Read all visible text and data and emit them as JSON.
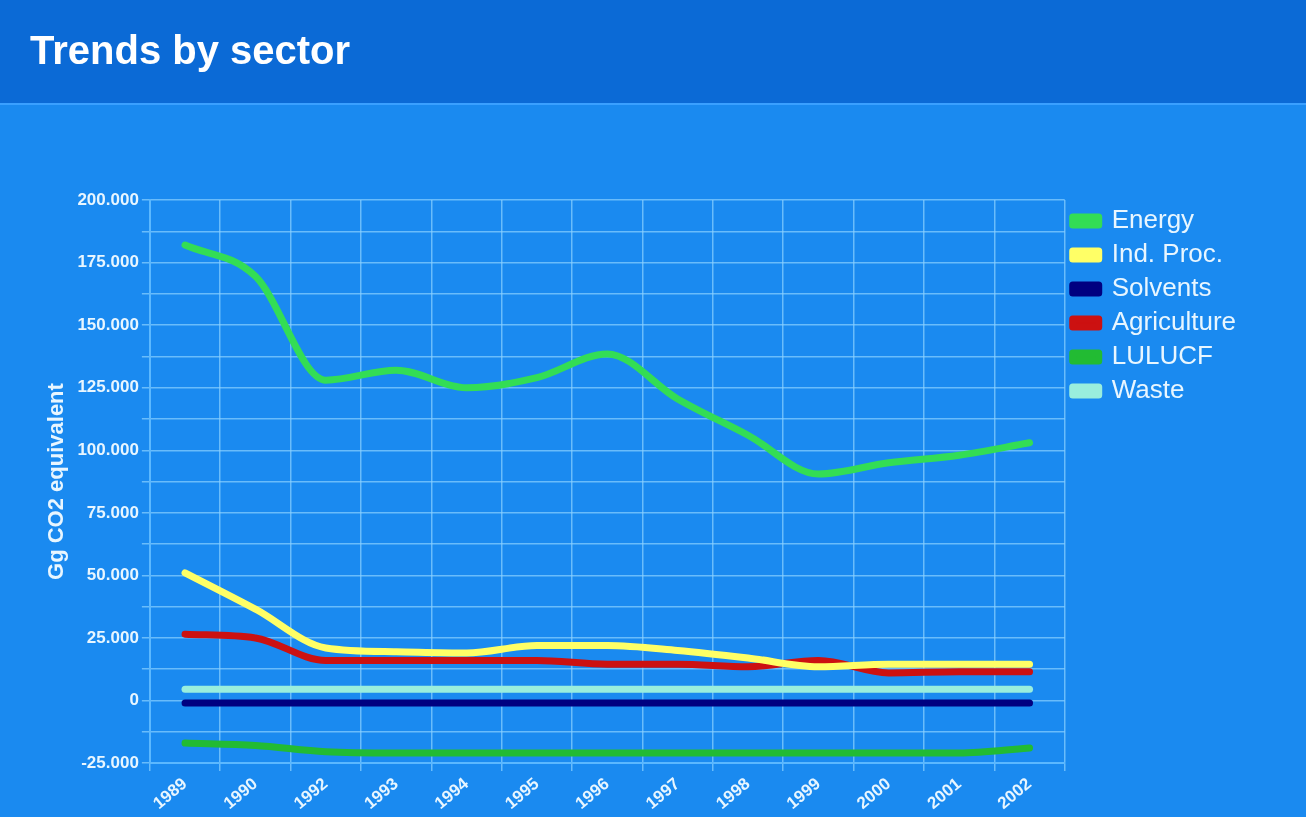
{
  "chart_data": {
    "type": "line",
    "title": "Trends by sector",
    "ylabel": "Gg CO2 equivalent",
    "categories": [
      "1989",
      "1990",
      "1992",
      "1993",
      "1994",
      "1995",
      "1996",
      "1997",
      "1998",
      "1999",
      "2000",
      "2001",
      "2002"
    ],
    "series": [
      {
        "name": "Energy",
        "color": "#33dd55",
        "values": [
          182000,
          169500,
          128000,
          132000,
          125000,
          129000,
          138500,
          120500,
          106000,
          90500,
          95000,
          98000,
          103000
        ]
      },
      {
        "name": "Ind. Proc.",
        "color": "#ffff66",
        "values": [
          51000,
          36500,
          21000,
          19500,
          19000,
          22000,
          22000,
          20000,
          17000,
          13500,
          14500,
          14500,
          14500
        ]
      },
      {
        "name": "Solvents",
        "color": "#000080",
        "values": [
          -1000,
          -1000,
          -1000,
          -1000,
          -1000,
          -1000,
          -1000,
          -1000,
          -1000,
          -1000,
          -1000,
          -1000,
          -1000
        ]
      },
      {
        "name": "Agriculture",
        "color": "#cc1111",
        "values": [
          26500,
          25000,
          16000,
          16000,
          16000,
          16000,
          14500,
          14500,
          13500,
          16000,
          11000,
          11500,
          11500
        ]
      },
      {
        "name": "LULUCF",
        "color": "#22bb33",
        "values": [
          -17000,
          -18000,
          -20500,
          -21000,
          -21000,
          -21000,
          -21000,
          -21000,
          -21000,
          -21000,
          -21000,
          -21000,
          -19000
        ]
      },
      {
        "name": "Waste",
        "color": "#99eedd",
        "values": [
          4500,
          4500,
          4500,
          4500,
          4500,
          4500,
          4500,
          4500,
          4500,
          4500,
          4500,
          4500,
          4500
        ]
      }
    ],
    "ylim": [
      -25000,
      200000
    ],
    "yticks": [
      {
        "value": -25000,
        "label": "-25.000"
      },
      {
        "value": -12500,
        "label": null
      },
      {
        "value": 0,
        "label": "0"
      },
      {
        "value": 12500,
        "label": null
      },
      {
        "value": 25000,
        "label": "25.000"
      },
      {
        "value": 37500,
        "label": null
      },
      {
        "value": 50000,
        "label": "50.000"
      },
      {
        "value": 62500,
        "label": null
      },
      {
        "value": 75000,
        "label": "75.000"
      },
      {
        "value": 87500,
        "label": null
      },
      {
        "value": 100000,
        "label": "100.000"
      },
      {
        "value": 112500,
        "label": null
      },
      {
        "value": 125000,
        "label": "125.000"
      },
      {
        "value": 137500,
        "label": null
      },
      {
        "value": 150000,
        "label": "150.000"
      },
      {
        "value": 162500,
        "label": null
      },
      {
        "value": 175000,
        "label": "175.000"
      },
      {
        "value": 187500,
        "label": null
      },
      {
        "value": 200000,
        "label": "200.000"
      }
    ],
    "grid": true,
    "legend": "right",
    "marker": "none",
    "line_style": "solid"
  }
}
